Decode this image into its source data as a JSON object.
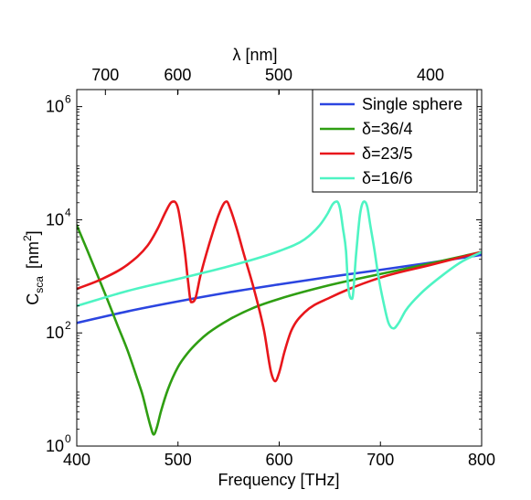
{
  "chart_data": {
    "type": "line",
    "xlabel": "Frequency [THz]",
    "xlim": [
      400,
      800
    ],
    "x_ticks": [
      400,
      500,
      600,
      700,
      800
    ],
    "x_tick_labels": [
      "400",
      "500",
      "600",
      "700",
      "800"
    ],
    "ylabel": {
      "main": "C",
      "sub": "sca",
      "units_open": "[nm",
      "units_sup": "2",
      "units_close": "]"
    },
    "y_scale": "log",
    "ylim": [
      1,
      2000000
    ],
    "y_ticks": [
      1,
      100,
      10000,
      1000000
    ],
    "y_tick_labels": [
      {
        "base": "10",
        "exp": "0"
      },
      {
        "base": "10",
        "exp": "2"
      },
      {
        "base": "10",
        "exp": "4"
      },
      {
        "base": "10",
        "exp": "6"
      }
    ],
    "top_axis": {
      "label": "λ [nm]",
      "ticks_nm": [
        700,
        600,
        500,
        400
      ],
      "tick_labels": [
        "700",
        "600",
        "500",
        "400"
      ]
    },
    "grid": false,
    "legend_position": "top-right",
    "series": [
      {
        "name": "Single sphere",
        "color": "#2b45e0",
        "x": [
          400,
          450,
          500,
          550,
          600,
          650,
          700,
          750,
          800
        ],
        "y": [
          150,
          240,
          360,
          520,
          720,
          980,
          1300,
          1750,
          2400
        ]
      },
      {
        "name": "δ=36/4",
        "color": "#2f9e12",
        "x": [
          400,
          410,
          420,
          430,
          440,
          450,
          460,
          465,
          470,
          473,
          476,
          479,
          483,
          490,
          500,
          510,
          520,
          530,
          550,
          575,
          600,
          650,
          700,
          750,
          800
        ],
        "y": [
          8000,
          3000,
          1100,
          400,
          140,
          50,
          15,
          8,
          3.5,
          2.2,
          1.6,
          2.1,
          4,
          10,
          25,
          45,
          70,
          100,
          170,
          280,
          400,
          700,
          1100,
          1700,
          2700
        ]
      },
      {
        "name": "δ=23/5",
        "color": "#e8161b",
        "x": [
          400,
          425,
          450,
          470,
          480,
          488,
          493,
          496,
          500,
          503,
          507,
          510,
          513,
          517,
          522,
          528,
          535,
          540,
          545,
          548,
          552,
          558,
          565,
          575,
          585,
          592,
          596,
          600,
          605,
          612,
          625,
          650,
          700,
          750,
          800
        ],
        "y": [
          600,
          900,
          1600,
          3500,
          7000,
          14000,
          20000,
          21000,
          16000,
          8000,
          2500,
          800,
          350,
          400,
          1000,
          2500,
          6500,
          12000,
          19000,
          21000,
          15000,
          7000,
          2500,
          600,
          110,
          20,
          14,
          20,
          45,
          110,
          230,
          420,
          950,
          1600,
          2700
        ]
      },
      {
        "name": "δ=16/6",
        "color": "#4ef4c3",
        "x": [
          400,
          450,
          500,
          550,
          600,
          625,
          640,
          648,
          653,
          657,
          660,
          663,
          666,
          668,
          672,
          676,
          680,
          684,
          687,
          690,
          694,
          698,
          703,
          708,
          713,
          718,
          725,
          740,
          760,
          780,
          800
        ],
        "y": [
          300,
          550,
          900,
          1500,
          2800,
          4500,
          8000,
          13000,
          19000,
          21000,
          16000,
          7000,
          2800,
          700,
          400,
          2500,
          13000,
          21000,
          17000,
          8000,
          3000,
          1000,
          350,
          150,
          120,
          150,
          250,
          500,
          1000,
          1800,
          2700
        ]
      }
    ]
  }
}
